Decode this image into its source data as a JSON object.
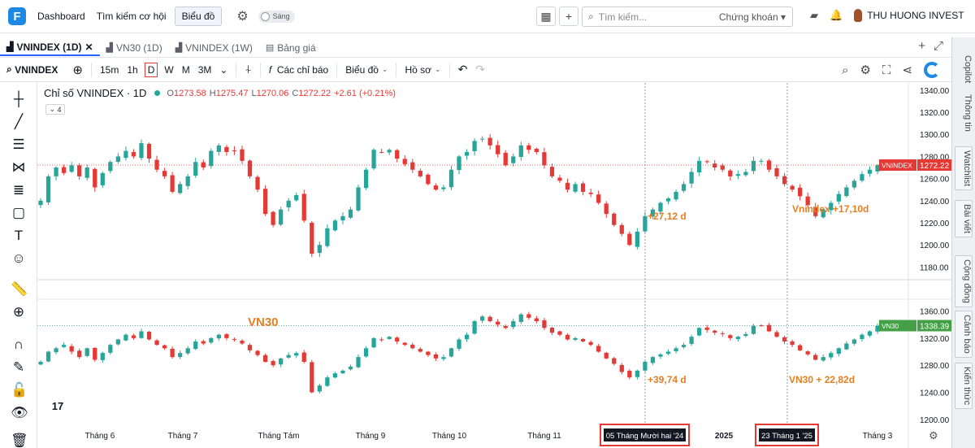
{
  "topnav": {
    "logo_letter": "F",
    "links": [
      "Dashboard",
      "Tìm kiếm cơ hội",
      "Biểu đồ"
    ],
    "theme_label": "Sáng",
    "search_placeholder": "Tìm kiếm...",
    "search_category": "Chứng khoán",
    "user_name": "THU HUONG INVEST"
  },
  "tabs": [
    {
      "label": "VNINDEX (1D)",
      "active": true
    },
    {
      "label": "VN30 (1D)",
      "active": false
    },
    {
      "label": "VNINDEX (1W)",
      "active": false
    },
    {
      "label": "Bảng giá",
      "active": false
    }
  ],
  "toolbar": {
    "symbol": "VNINDEX",
    "intervals": [
      "15m",
      "1h",
      "D",
      "W",
      "M",
      "3M"
    ],
    "indicators_label": "Các chỉ báo",
    "chart_type_label": "Biểu đồ",
    "profile_label": "Hồ sơ"
  },
  "legend": {
    "title": "Chỉ số VNINDEX · 1D",
    "o_label": "O",
    "o": "1273.58",
    "h_label": "H",
    "h": "1275.47",
    "l_label": "L",
    "l": "1270.06",
    "c_label": "C",
    "c": "1272.22",
    "change": "+2.61 (+0.21%)",
    "collapse_count": "4"
  },
  "right_tabs": [
    "Copilot",
    "Thông tin",
    "Watchlist",
    "Bài viết",
    "Cộng đồng",
    "Cảnh báo",
    "Kiến thức"
  ],
  "colors": {
    "up": "#26a69a",
    "down": "#e53935",
    "annot": "#e67e22",
    "accent": "#2962ff"
  },
  "chart_data": [
    {
      "type": "candlestick",
      "series_name": "VNINDEX",
      "price_tag": "1272.22",
      "ylim": [
        1170,
        1345
      ],
      "y_ticks": [
        1180,
        1200,
        1220,
        1240,
        1260,
        1280,
        1300,
        1320,
        1340
      ],
      "y_tick_labels": [
        "1180.00",
        "1200.00",
        "1220.00",
        "1240.00",
        "1260.00",
        "1280.00",
        "1300.00",
        "1320.00",
        "1340.00"
      ],
      "close_path": [
        1240,
        1262,
        1270,
        1265,
        1272,
        1262,
        1270,
        1252,
        1265,
        1275,
        1280,
        1285,
        1280,
        1292,
        1278,
        1268,
        1262,
        1248,
        1255,
        1262,
        1275,
        1270,
        1285,
        1290,
        1284,
        1285,
        1276,
        1262,
        1250,
        1228,
        1218,
        1232,
        1240,
        1245,
        1222,
        1192,
        1200,
        1215,
        1222,
        1226,
        1232,
        1252,
        1268,
        1286,
        1284,
        1286,
        1278,
        1273,
        1268,
        1262,
        1255,
        1250,
        1252,
        1268,
        1280,
        1284,
        1294,
        1296,
        1290,
        1282,
        1272,
        1280,
        1290,
        1286,
        1284,
        1272,
        1262,
        1258,
        1250,
        1255,
        1248,
        1246,
        1238,
        1228,
        1218,
        1210,
        1200,
        1212,
        1226,
        1232,
        1238,
        1242,
        1248,
        1255,
        1266,
        1276,
        1275,
        1270,
        1268,
        1262,
        1264,
        1266,
        1276,
        1276,
        1268,
        1262,
        1255,
        1250,
        1244,
        1236,
        1226,
        1232,
        1238,
        1246,
        1252,
        1258,
        1264,
        1268,
        1272
      ],
      "annotations": [
        "+27,12 d",
        "Vnindex +17,10d"
      ]
    },
    {
      "type": "candlestick",
      "series_name": "VN30",
      "price_tag": "1338.39",
      "ylim": [
        1195,
        1375
      ],
      "y_ticks": [
        1200,
        1240,
        1280,
        1320,
        1360
      ],
      "y_tick_labels": [
        "1200.00",
        "1240.00",
        "1280.00",
        "1320.00",
        "1360.00"
      ],
      "close_path": [
        1285,
        1300,
        1305,
        1310,
        1300,
        1292,
        1305,
        1288,
        1298,
        1310,
        1318,
        1325,
        1320,
        1330,
        1318,
        1310,
        1305,
        1292,
        1298,
        1305,
        1315,
        1312,
        1320,
        1325,
        1320,
        1318,
        1312,
        1302,
        1295,
        1285,
        1280,
        1290,
        1295,
        1298,
        1285,
        1240,
        1250,
        1262,
        1268,
        1272,
        1278,
        1292,
        1305,
        1320,
        1318,
        1322,
        1315,
        1310,
        1305,
        1300,
        1295,
        1290,
        1292,
        1305,
        1318,
        1325,
        1345,
        1352,
        1345,
        1340,
        1335,
        1345,
        1355,
        1350,
        1345,
        1335,
        1328,
        1325,
        1318,
        1320,
        1315,
        1310,
        1300,
        1290,
        1282,
        1270,
        1262,
        1272,
        1285,
        1292,
        1296,
        1300,
        1305,
        1310,
        1322,
        1335,
        1332,
        1328,
        1326,
        1320,
        1322,
        1326,
        1338,
        1338,
        1330,
        1322,
        1315,
        1310,
        1302,
        1296,
        1288,
        1292,
        1298,
        1305,
        1312,
        1318,
        1325,
        1330,
        1338
      ],
      "annotations": [
        "VN30",
        "+39,74 d",
        "VN30 + 22,82d"
      ]
    }
  ],
  "x_axis": {
    "labels": [
      "Tháng 6",
      "Tháng 7",
      "Tháng Tám",
      "Tháng 9",
      "Tháng 10",
      "Tháng 11",
      "2025",
      "Tháng 3"
    ],
    "crosshair_labels": [
      "05 Tháng Mười hai '24",
      "23 Tháng 1 '25"
    ]
  },
  "tv_logo": "17"
}
